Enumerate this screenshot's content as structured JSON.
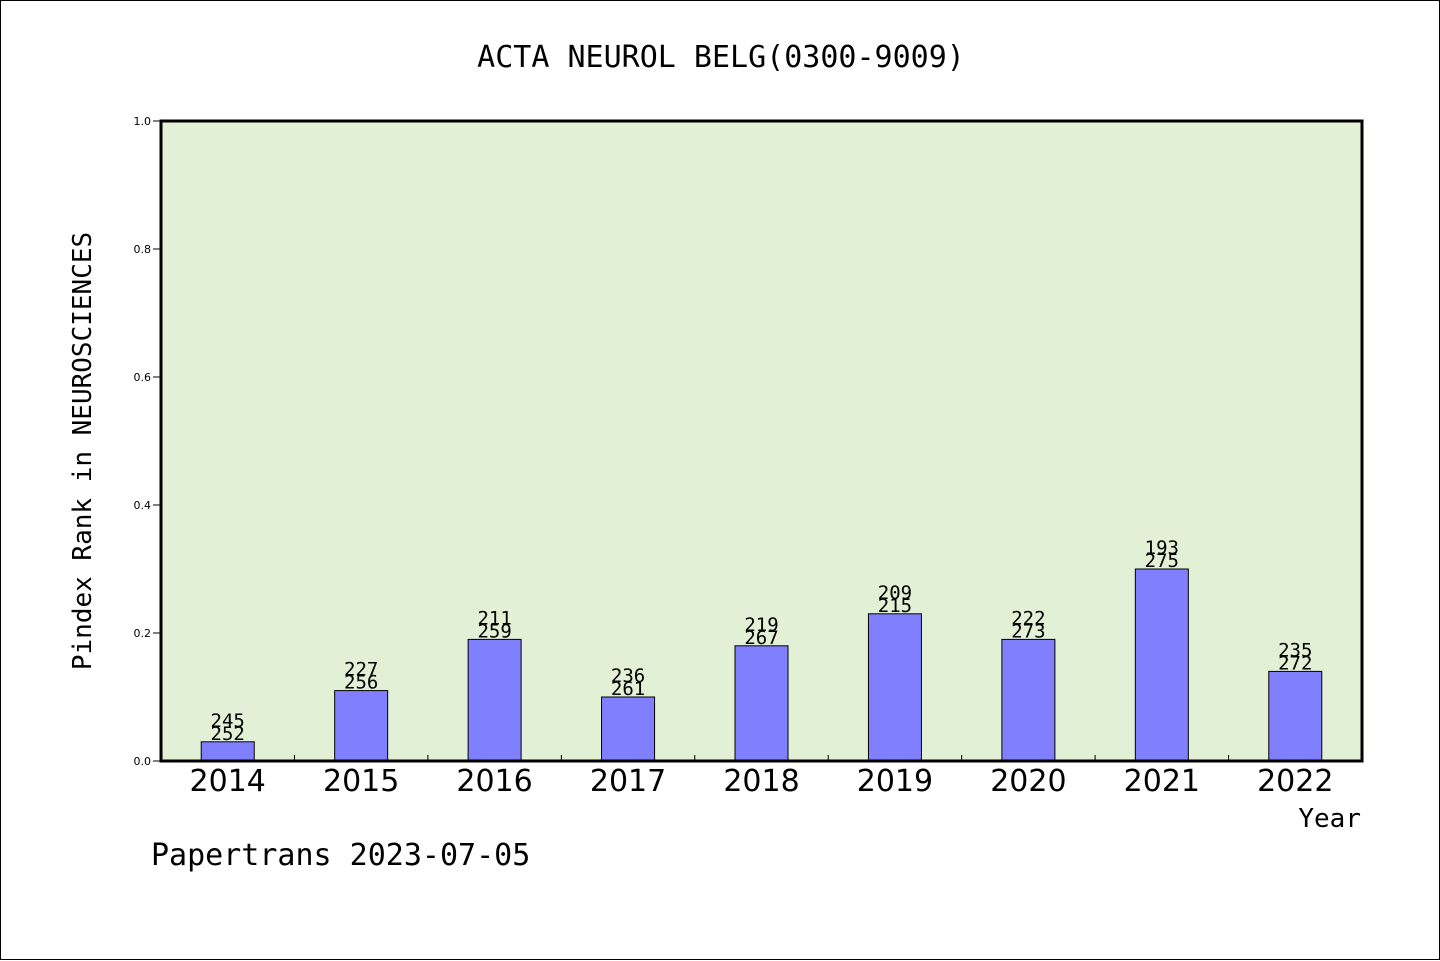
{
  "colors": {
    "background": "#ffffff",
    "plot_background": "#e2f0d6",
    "bar_fill": "#8080ff",
    "axis": "#000000"
  },
  "footer": {
    "credit": "Papertrans 2023-07-05"
  },
  "chart_data": {
    "type": "bar",
    "title": "ACTA NEUROL BELG(0300-9009)",
    "xlabel": "Year",
    "ylabel": "Pindex Rank in NEUROSCIENCES",
    "ylim": [
      0,
      1.0
    ],
    "yticks": [
      "0.0",
      "0.2",
      "0.4",
      "0.6",
      "0.8",
      "1.0"
    ],
    "grid": false,
    "categories": [
      "2014",
      "2015",
      "2016",
      "2017",
      "2018",
      "2019",
      "2020",
      "2021",
      "2022"
    ],
    "values": [
      0.03,
      0.11,
      0.19,
      0.1,
      0.18,
      0.23,
      0.19,
      0.3,
      0.14
    ],
    "labels_top": [
      "245",
      "227",
      "211",
      "236",
      "219",
      "209",
      "222",
      "193",
      "235"
    ],
    "labels_bottom": [
      "252",
      "256",
      "259",
      "261",
      "267",
      "215",
      "273",
      "275",
      "272"
    ]
  }
}
